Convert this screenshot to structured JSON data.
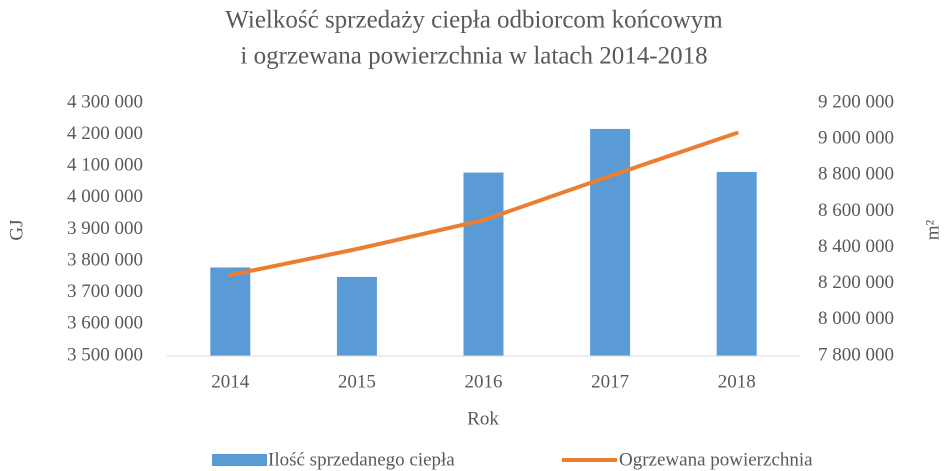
{
  "chart_data": {
    "type": "bar_line",
    "title": [
      "Wielkość sprzedaży ciepła odbiorcom końcowym",
      "i ogrzewana powierzchnia w latach 2014-2018"
    ],
    "x_label": "Rok",
    "y_label": "GJ",
    "y2_label": "m²",
    "categories": [
      "2014",
      "2015",
      "2016",
      "2017",
      "2018"
    ],
    "series": [
      {
        "name": "Ilość sprzedanego ciepła",
        "type": "bar",
        "color": "#5b9bd5",
        "values": [
          3780000,
          3750000,
          4080000,
          4218000,
          4082000
        ]
      },
      {
        "name": "Ogrzewana powierzchnia",
        "type": "line",
        "axis": "y2",
        "color": "#ed7d31",
        "values": [
          8248000,
          8392000,
          8552000,
          8796000,
          9034000
        ]
      }
    ],
    "ylim": [
      3500000,
      4300000
    ],
    "yticks": [
      {
        "value": 3500000,
        "label": "3 500 000"
      },
      {
        "value": 3600000,
        "label": "3 600 000"
      },
      {
        "value": 3700000,
        "label": "3 700 000"
      },
      {
        "value": 3800000,
        "label": "3 800 000"
      },
      {
        "value": 3900000,
        "label": "3 900 000"
      },
      {
        "value": 4000000,
        "label": "4 000 000"
      },
      {
        "value": 4100000,
        "label": "4 100 000"
      },
      {
        "value": 4200000,
        "label": "4 200 000"
      },
      {
        "value": 4300000,
        "label": "4 300 000"
      }
    ],
    "y2lim": [
      7800000,
      9200000
    ],
    "y2ticks": [
      {
        "value": 7800000,
        "label": "7 800 000"
      },
      {
        "value": 8000000,
        "label": "8 000 000"
      },
      {
        "value": 8200000,
        "label": "8 200 000"
      },
      {
        "value": 8400000,
        "label": "8 400 000"
      },
      {
        "value": 8600000,
        "label": "8 600 000"
      },
      {
        "value": 8800000,
        "label": "8 800 000"
      },
      {
        "value": 9000000,
        "label": "9 000 000"
      },
      {
        "value": 9200000,
        "label": "9 200 000"
      }
    ],
    "legend": "bottom"
  }
}
